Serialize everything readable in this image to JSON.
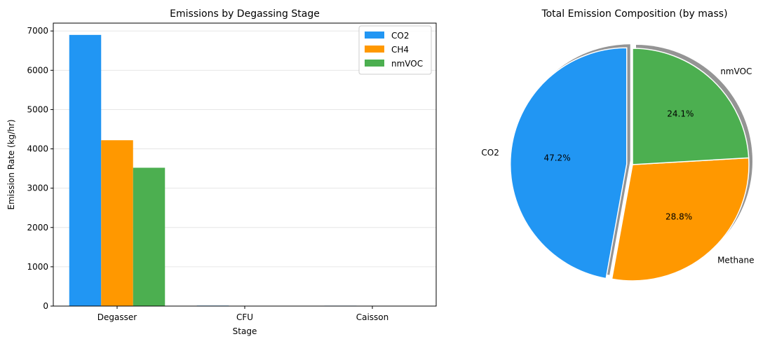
{
  "chart_data": [
    {
      "type": "bar",
      "title": "Emissions by Degassing Stage",
      "xlabel": "Stage",
      "ylabel": "Emission Rate (kg/hr)",
      "categories": [
        "Degasser",
        "CFU",
        "Caisson"
      ],
      "ylim": [
        0,
        7200
      ],
      "yticks": [
        0,
        1000,
        2000,
        3000,
        4000,
        5000,
        6000,
        7000
      ],
      "grid": "y",
      "legend_position": "top-right",
      "series": [
        {
          "name": "CO2",
          "values": [
            6900,
            12,
            10
          ],
          "color": "#2196F3"
        },
        {
          "name": "CH4",
          "values": [
            4220,
            1,
            1
          ],
          "color": "#FF9800"
        },
        {
          "name": "nmVOC",
          "values": [
            3520,
            1,
            1
          ],
          "color": "#4CAF50"
        }
      ]
    },
    {
      "type": "pie",
      "title": "Total Emission Composition (by mass)",
      "slices": [
        {
          "label": "CO2",
          "value": 47.2,
          "pct_label": "47.2%",
          "color": "#2196F3",
          "exploded": true
        },
        {
          "label": "Methane",
          "value": 28.8,
          "pct_label": "28.8%",
          "color": "#FF9800",
          "exploded": false
        },
        {
          "label": "nmVOC",
          "value": 24.1,
          "pct_label": "24.1%",
          "color": "#4CAF50",
          "exploded": false
        }
      ],
      "start_angle": 90,
      "shadow": true
    }
  ]
}
